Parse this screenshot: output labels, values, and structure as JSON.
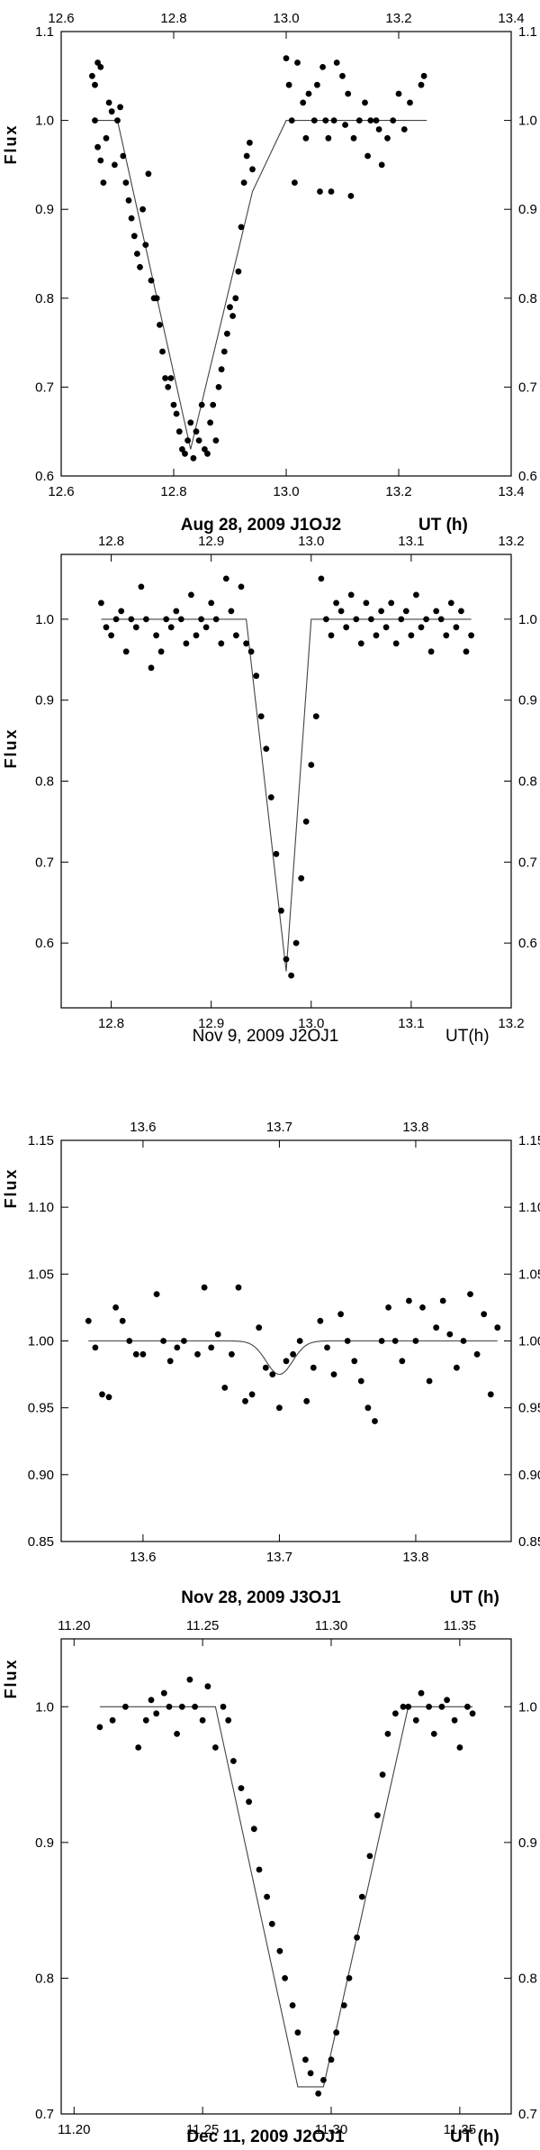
{
  "chart_data": [
    {
      "type": "scatter",
      "title": "Aug 28, 2009  J1OJ2",
      "xlabel": "UT (h)",
      "ylabel": "Flux",
      "xlim": [
        12.6,
        13.4
      ],
      "ylim": [
        0.6,
        1.1
      ],
      "xticks": [
        "12.6",
        "12.8",
        "13.0",
        "13.2",
        "13.4"
      ],
      "yticks": [
        "0.6",
        "0.7",
        "0.8",
        "0.9",
        "1.0",
        "1.1"
      ],
      "model_x": [
        12.66,
        12.7,
        12.83,
        12.94,
        13.0,
        13.25
      ],
      "model_y": [
        1.0,
        1.0,
        0.63,
        0.92,
        1.0,
        1.0
      ],
      "points": [
        [
          12.655,
          1.05
        ],
        [
          12.66,
          1.04
        ],
        [
          12.665,
          1.065
        ],
        [
          12.67,
          1.06
        ],
        [
          12.66,
          1.0
        ],
        [
          12.665,
          0.97
        ],
        [
          12.67,
          0.955
        ],
        [
          12.675,
          0.93
        ],
        [
          12.68,
          0.98
        ],
        [
          12.685,
          1.02
        ],
        [
          12.69,
          1.01
        ],
        [
          12.695,
          0.95
        ],
        [
          12.7,
          1.0
        ],
        [
          12.705,
          1.015
        ],
        [
          12.71,
          0.96
        ],
        [
          12.715,
          0.93
        ],
        [
          12.72,
          0.91
        ],
        [
          12.725,
          0.89
        ],
        [
          12.73,
          0.87
        ],
        [
          12.735,
          0.85
        ],
        [
          12.74,
          0.835
        ],
        [
          12.745,
          0.9
        ],
        [
          12.75,
          0.86
        ],
        [
          12.755,
          0.94
        ],
        [
          12.76,
          0.82
        ],
        [
          12.765,
          0.8
        ],
        [
          12.77,
          0.8
        ],
        [
          12.775,
          0.77
        ],
        [
          12.78,
          0.74
        ],
        [
          12.785,
          0.71
        ],
        [
          12.79,
          0.7
        ],
        [
          12.795,
          0.71
        ],
        [
          12.8,
          0.68
        ],
        [
          12.805,
          0.67
        ],
        [
          12.81,
          0.65
        ],
        [
          12.815,
          0.63
        ],
        [
          12.82,
          0.625
        ],
        [
          12.825,
          0.64
        ],
        [
          12.83,
          0.66
        ],
        [
          12.835,
          0.62
        ],
        [
          12.84,
          0.65
        ],
        [
          12.845,
          0.64
        ],
        [
          12.85,
          0.68
        ],
        [
          12.855,
          0.63
        ],
        [
          12.86,
          0.625
        ],
        [
          12.865,
          0.66
        ],
        [
          12.87,
          0.68
        ],
        [
          12.875,
          0.64
        ],
        [
          12.88,
          0.7
        ],
        [
          12.885,
          0.72
        ],
        [
          12.89,
          0.74
        ],
        [
          12.895,
          0.76
        ],
        [
          12.9,
          0.79
        ],
        [
          12.905,
          0.78
        ],
        [
          12.91,
          0.8
        ],
        [
          12.915,
          0.83
        ],
        [
          12.92,
          0.88
        ],
        [
          12.925,
          0.93
        ],
        [
          12.93,
          0.96
        ],
        [
          12.935,
          0.975
        ],
        [
          12.94,
          0.945
        ],
        [
          13.0,
          1.07
        ],
        [
          13.005,
          1.04
        ],
        [
          13.01,
          1.0
        ],
        [
          13.015,
          0.93
        ],
        [
          13.02,
          1.065
        ],
        [
          13.03,
          1.02
        ],
        [
          13.035,
          0.98
        ],
        [
          13.04,
          1.03
        ],
        [
          13.05,
          1.0
        ],
        [
          13.055,
          1.04
        ],
        [
          13.06,
          0.92
        ],
        [
          13.065,
          1.06
        ],
        [
          13.07,
          1.0
        ],
        [
          13.075,
          0.98
        ],
        [
          13.08,
          0.92
        ],
        [
          13.085,
          1.0
        ],
        [
          13.09,
          1.065
        ],
        [
          13.1,
          1.05
        ],
        [
          13.105,
          0.995
        ],
        [
          13.11,
          1.03
        ],
        [
          13.115,
          0.915
        ],
        [
          13.12,
          0.98
        ],
        [
          13.13,
          1.0
        ],
        [
          13.14,
          1.02
        ],
        [
          13.145,
          0.96
        ],
        [
          13.15,
          1.0
        ],
        [
          13.16,
          1.0
        ],
        [
          13.165,
          0.99
        ],
        [
          13.17,
          0.95
        ],
        [
          13.18,
          0.98
        ],
        [
          13.19,
          1.0
        ],
        [
          13.2,
          1.03
        ],
        [
          13.21,
          0.99
        ],
        [
          13.22,
          1.02
        ],
        [
          13.24,
          1.04
        ],
        [
          13.245,
          1.05
        ]
      ]
    },
    {
      "type": "scatter",
      "title": "Nov 9, 2009  J2OJ1",
      "xlabel": "UT(h)",
      "ylabel": "Flux",
      "xlim": [
        12.75,
        13.2
      ],
      "ylim": [
        0.52,
        1.08
      ],
      "xticks": [
        "12.8",
        "12.9",
        "13.0",
        "13.1",
        "13.2"
      ],
      "yticks": [
        "0.6",
        "0.7",
        "0.8",
        "0.9",
        "1.0"
      ],
      "model_x": [
        12.79,
        12.935,
        12.975,
        13.0,
        13.16
      ],
      "model_y": [
        1.0,
        1.0,
        0.565,
        1.0,
        1.0
      ],
      "points": [
        [
          12.79,
          1.02
        ],
        [
          12.795,
          0.99
        ],
        [
          12.8,
          0.98
        ],
        [
          12.805,
          1.0
        ],
        [
          12.81,
          1.01
        ],
        [
          12.815,
          0.96
        ],
        [
          12.82,
          1.0
        ],
        [
          12.825,
          0.99
        ],
        [
          12.83,
          1.04
        ],
        [
          12.835,
          1.0
        ],
        [
          12.84,
          0.94
        ],
        [
          12.845,
          0.98
        ],
        [
          12.85,
          0.96
        ],
        [
          12.855,
          1.0
        ],
        [
          12.86,
          0.99
        ],
        [
          12.865,
          1.01
        ],
        [
          12.87,
          1.0
        ],
        [
          12.875,
          0.97
        ],
        [
          12.88,
          1.03
        ],
        [
          12.885,
          0.98
        ],
        [
          12.89,
          1.0
        ],
        [
          12.895,
          0.99
        ],
        [
          12.9,
          1.02
        ],
        [
          12.905,
          1.0
        ],
        [
          12.91,
          0.97
        ],
        [
          12.915,
          1.05
        ],
        [
          12.92,
          1.01
        ],
        [
          12.925,
          0.98
        ],
        [
          12.93,
          1.04
        ],
        [
          12.935,
          0.97
        ],
        [
          12.94,
          0.96
        ],
        [
          12.945,
          0.93
        ],
        [
          12.95,
          0.88
        ],
        [
          12.955,
          0.84
        ],
        [
          12.96,
          0.78
        ],
        [
          12.965,
          0.71
        ],
        [
          12.97,
          0.64
        ],
        [
          12.975,
          0.58
        ],
        [
          12.98,
          0.56
        ],
        [
          12.985,
          0.6
        ],
        [
          12.99,
          0.68
        ],
        [
          12.995,
          0.75
        ],
        [
          13.0,
          0.82
        ],
        [
          13.005,
          0.88
        ],
        [
          13.01,
          1.05
        ],
        [
          13.015,
          1.0
        ],
        [
          13.02,
          0.98
        ],
        [
          13.025,
          1.02
        ],
        [
          13.03,
          1.01
        ],
        [
          13.035,
          0.99
        ],
        [
          13.04,
          1.03
        ],
        [
          13.045,
          1.0
        ],
        [
          13.05,
          0.97
        ],
        [
          13.055,
          1.02
        ],
        [
          13.06,
          1.0
        ],
        [
          13.065,
          0.98
        ],
        [
          13.07,
          1.01
        ],
        [
          13.075,
          0.99
        ],
        [
          13.08,
          1.02
        ],
        [
          13.085,
          0.97
        ],
        [
          13.09,
          1.0
        ],
        [
          13.095,
          1.01
        ],
        [
          13.1,
          0.98
        ],
        [
          13.105,
          1.03
        ],
        [
          13.11,
          0.99
        ],
        [
          13.115,
          1.0
        ],
        [
          13.12,
          0.96
        ],
        [
          13.125,
          1.01
        ],
        [
          13.13,
          1.0
        ],
        [
          13.135,
          0.98
        ],
        [
          13.14,
          1.02
        ],
        [
          13.145,
          0.99
        ],
        [
          13.15,
          1.01
        ],
        [
          13.155,
          0.96
        ],
        [
          13.16,
          0.98
        ]
      ]
    },
    {
      "type": "scatter",
      "title": "Nov 28, 2009  J3OJ1",
      "xlabel": "UT (h)",
      "ylabel": "Flux",
      "xlim": [
        13.54,
        13.87
      ],
      "ylim": [
        0.85,
        1.15
      ],
      "xticks": [
        "13.6",
        "13.7",
        "13.8"
      ],
      "yticks": [
        "0.85",
        "0.90",
        "0.95",
        "1.00",
        "1.05",
        "1.10",
        "1.15"
      ],
      "model_x": [
        13.56,
        13.665,
        13.7,
        13.72,
        13.86
      ],
      "model_y": [
        1.0,
        1.0,
        0.975,
        1.0,
        1.0
      ],
      "model_smooth": true,
      "points": [
        [
          13.56,
          1.015
        ],
        [
          13.565,
          0.995
        ],
        [
          13.57,
          0.96
        ],
        [
          13.575,
          0.958
        ],
        [
          13.58,
          1.025
        ],
        [
          13.585,
          1.015
        ],
        [
          13.59,
          1.0
        ],
        [
          13.595,
          0.99
        ],
        [
          13.6,
          0.99
        ],
        [
          13.61,
          1.035
        ],
        [
          13.615,
          1.0
        ],
        [
          13.62,
          0.985
        ],
        [
          13.625,
          0.995
        ],
        [
          13.63,
          1.0
        ],
        [
          13.64,
          0.99
        ],
        [
          13.645,
          1.04
        ],
        [
          13.65,
          0.995
        ],
        [
          13.655,
          1.005
        ],
        [
          13.66,
          0.965
        ],
        [
          13.665,
          0.99
        ],
        [
          13.67,
          1.04
        ],
        [
          13.675,
          0.955
        ],
        [
          13.68,
          0.96
        ],
        [
          13.685,
          1.01
        ],
        [
          13.69,
          0.98
        ],
        [
          13.695,
          0.975
        ],
        [
          13.7,
          0.95
        ],
        [
          13.705,
          0.985
        ],
        [
          13.71,
          0.99
        ],
        [
          13.715,
          1.0
        ],
        [
          13.72,
          0.955
        ],
        [
          13.725,
          0.98
        ],
        [
          13.73,
          1.015
        ],
        [
          13.735,
          0.995
        ],
        [
          13.74,
          0.975
        ],
        [
          13.745,
          1.02
        ],
        [
          13.75,
          1.0
        ],
        [
          13.755,
          0.985
        ],
        [
          13.76,
          0.97
        ],
        [
          13.765,
          0.95
        ],
        [
          13.77,
          0.94
        ],
        [
          13.775,
          1.0
        ],
        [
          13.78,
          1.025
        ],
        [
          13.785,
          1.0
        ],
        [
          13.79,
          0.985
        ],
        [
          13.795,
          1.03
        ],
        [
          13.8,
          1.0
        ],
        [
          13.805,
          1.025
        ],
        [
          13.81,
          0.97
        ],
        [
          13.815,
          1.01
        ],
        [
          13.82,
          1.03
        ],
        [
          13.825,
          1.005
        ],
        [
          13.83,
          0.98
        ],
        [
          13.835,
          1.0
        ],
        [
          13.84,
          1.035
        ],
        [
          13.845,
          0.99
        ],
        [
          13.85,
          1.02
        ],
        [
          13.855,
          0.96
        ],
        [
          13.86,
          1.01
        ]
      ]
    },
    {
      "type": "scatter",
      "title": "Dec 11, 2009  J2OJ1",
      "xlabel": "UT (h)",
      "ylabel": "Flux",
      "xlim": [
        11.195,
        11.37
      ],
      "ylim": [
        0.7,
        1.05
      ],
      "xticks": [
        "11.20",
        "11.25",
        "11.30",
        "11.35"
      ],
      "yticks": [
        "0.7",
        "0.8",
        "0.9",
        "1.0"
      ],
      "model_x": [
        11.21,
        11.255,
        11.287,
        11.297,
        11.33,
        11.355
      ],
      "model_y": [
        1.0,
        1.0,
        0.72,
        0.72,
        1.0,
        1.0
      ],
      "points": [
        [
          11.21,
          0.985
        ],
        [
          11.215,
          0.99
        ],
        [
          11.22,
          1.0
        ],
        [
          11.225,
          0.97
        ],
        [
          11.228,
          0.99
        ],
        [
          11.23,
          1.005
        ],
        [
          11.232,
          0.995
        ],
        [
          11.235,
          1.01
        ],
        [
          11.237,
          1.0
        ],
        [
          11.24,
          0.98
        ],
        [
          11.242,
          1.0
        ],
        [
          11.245,
          1.02
        ],
        [
          11.247,
          1.0
        ],
        [
          11.25,
          0.99
        ],
        [
          11.252,
          1.015
        ],
        [
          11.255,
          0.97
        ],
        [
          11.258,
          1.0
        ],
        [
          11.26,
          0.99
        ],
        [
          11.262,
          0.96
        ],
        [
          11.265,
          0.94
        ],
        [
          11.268,
          0.93
        ],
        [
          11.27,
          0.91
        ],
        [
          11.272,
          0.88
        ],
        [
          11.275,
          0.86
        ],
        [
          11.277,
          0.84
        ],
        [
          11.28,
          0.82
        ],
        [
          11.282,
          0.8
        ],
        [
          11.285,
          0.78
        ],
        [
          11.287,
          0.76
        ],
        [
          11.29,
          0.74
        ],
        [
          11.292,
          0.73
        ],
        [
          11.295,
          0.715
        ],
        [
          11.297,
          0.725
        ],
        [
          11.3,
          0.74
        ],
        [
          11.302,
          0.76
        ],
        [
          11.305,
          0.78
        ],
        [
          11.307,
          0.8
        ],
        [
          11.31,
          0.83
        ],
        [
          11.312,
          0.86
        ],
        [
          11.315,
          0.89
        ],
        [
          11.318,
          0.92
        ],
        [
          11.32,
          0.95
        ],
        [
          11.322,
          0.98
        ],
        [
          11.325,
          0.995
        ],
        [
          11.328,
          1.0
        ],
        [
          11.33,
          1.0
        ],
        [
          11.333,
          0.99
        ],
        [
          11.335,
          1.01
        ],
        [
          11.338,
          1.0
        ],
        [
          11.34,
          0.98
        ],
        [
          11.343,
          1.0
        ],
        [
          11.345,
          1.005
        ],
        [
          11.348,
          0.99
        ],
        [
          11.35,
          0.97
        ],
        [
          11.353,
          1.0
        ],
        [
          11.355,
          0.995
        ]
      ]
    }
  ]
}
